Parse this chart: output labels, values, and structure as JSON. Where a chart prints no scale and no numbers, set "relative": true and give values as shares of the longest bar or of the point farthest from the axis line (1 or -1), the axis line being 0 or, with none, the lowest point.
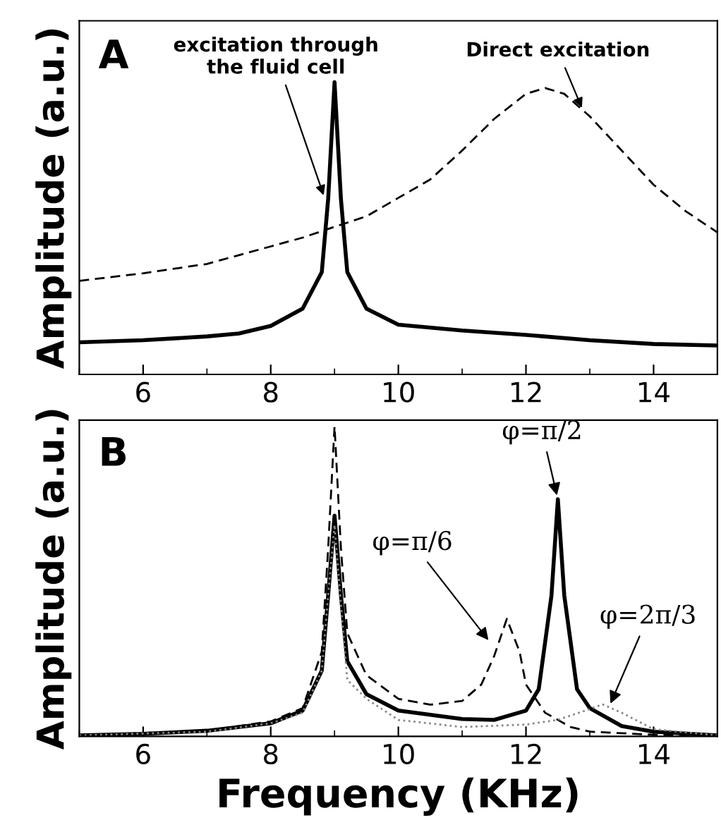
{
  "chart_data": [
    {
      "type": "line",
      "title": "A",
      "ylabel": "Amplitude (a.u.)",
      "relative": true,
      "xlim": [
        5,
        15
      ],
      "xticks": [
        6,
        8,
        10,
        12,
        14
      ],
      "tick_labels": "x",
      "grid": false,
      "legend": false,
      "series": [
        {
          "color": "#000000",
          "line_style": "solid",
          "x": [
            5,
            6,
            7,
            7.5,
            8,
            8.5,
            8.8,
            8.9,
            9,
            9.1,
            9.2,
            9.5,
            10,
            11,
            12,
            13,
            14,
            15
          ],
          "values": [
            0.11,
            0.117,
            0.13,
            0.14,
            0.166,
            0.225,
            0.35,
            0.6,
            1,
            0.6,
            0.35,
            0.225,
            0.17,
            0.15,
            0.135,
            0.117,
            0.104,
            0.099
          ]
        },
        {
          "color": "#000000",
          "line_style": "dashed",
          "x": [
            5,
            6,
            7,
            8,
            8.5,
            9,
            9.5,
            10,
            10.5,
            11,
            11.5,
            12,
            12.3,
            12.6,
            13,
            13.5,
            14,
            14.5,
            15
          ],
          "values": [
            0.32,
            0.346,
            0.378,
            0.438,
            0.468,
            0.505,
            0.541,
            0.604,
            0.667,
            0.766,
            0.874,
            0.96,
            0.98,
            0.96,
            0.883,
            0.766,
            0.649,
            0.559,
            0.486
          ]
        }
      ],
      "annotations": [
        {
          "text": "excitation through\nthe fluid cell",
          "x": 8.85,
          "y": 0.6
        },
        {
          "text": "Direct excitation",
          "x": 12.9,
          "y": 0.9
        }
      ]
    },
    {
      "type": "line",
      "title": "B",
      "ylabel": "Amplitude (a.u.)",
      "xlabel": "Frequency (KHz)",
      "relative": true,
      "xlim": [
        5,
        15
      ],
      "xticks": [
        6,
        8,
        10,
        12,
        14
      ],
      "tick_labels": "x",
      "grid": false,
      "legend": false,
      "series": [
        {
          "color": "#000000",
          "line_style": "solid",
          "x": [
            5,
            6,
            7,
            8,
            8.5,
            8.8,
            8.9,
            9,
            9.1,
            9.2,
            9.5,
            10,
            11,
            11.5,
            12,
            12.2,
            12.4,
            12.5,
            12.6,
            12.8,
            13,
            13.5,
            14,
            15
          ],
          "values": [
            0.003,
            0.008,
            0.018,
            0.042,
            0.083,
            0.212,
            0.455,
            0.712,
            0.455,
            0.242,
            0.136,
            0.083,
            0.056,
            0.053,
            0.083,
            0.152,
            0.455,
            0.765,
            0.455,
            0.152,
            0.091,
            0.033,
            0.015,
            0.003
          ]
        },
        {
          "color": "#000000",
          "line_style": "dashed",
          "x": [
            5,
            7,
            8,
            8.5,
            8.8,
            8.9,
            9,
            9.1,
            9.2,
            9.5,
            10,
            10.5,
            11,
            11.3,
            11.5,
            11.7,
            11.9,
            12,
            12.3,
            12.7,
            13,
            14,
            15
          ],
          "values": [
            0.003,
            0.018,
            0.048,
            0.091,
            0.273,
            0.606,
            1,
            0.606,
            0.333,
            0.197,
            0.121,
            0.102,
            0.114,
            0.167,
            0.258,
            0.379,
            0.273,
            0.167,
            0.076,
            0.03,
            0.015,
            0.005,
            0.002
          ]
        },
        {
          "color": "#888888",
          "line_style": "dotted",
          "x": [
            5,
            7,
            8,
            8.5,
            8.8,
            8.9,
            9,
            9.1,
            9.2,
            9.5,
            10,
            11,
            12,
            12.5,
            13,
            13.2,
            13.5,
            14,
            15
          ],
          "values": [
            0.003,
            0.015,
            0.042,
            0.076,
            0.212,
            0.455,
            0.682,
            0.424,
            0.182,
            0.121,
            0.053,
            0.03,
            0.038,
            0.053,
            0.088,
            0.103,
            0.076,
            0.023,
            0.003
          ]
        }
      ],
      "annotations": [
        {
          "text": "φ=π/2",
          "x": 12.5,
          "y": 0.765
        },
        {
          "text": "φ=π/6",
          "x": 11.45,
          "y": 0.3
        },
        {
          "text": "φ=2π/3",
          "x": 13.3,
          "y": 0.094
        }
      ]
    }
  ]
}
